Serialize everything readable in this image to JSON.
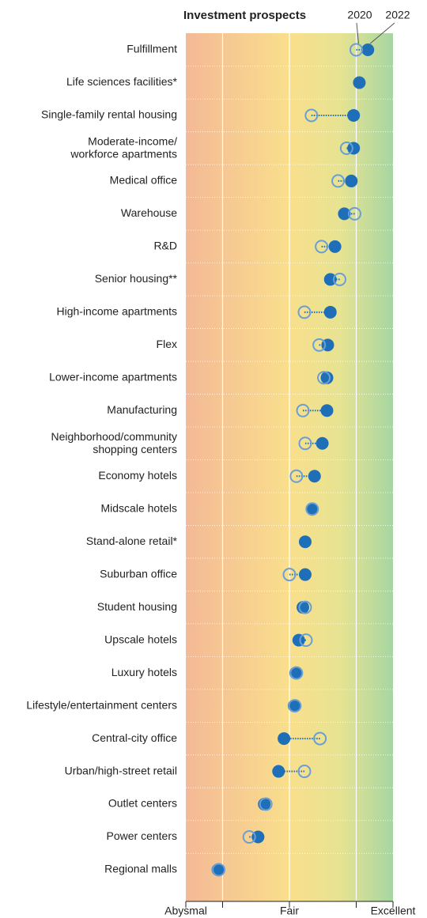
{
  "chart_data": {
    "type": "dumbbell",
    "title": "Investment prospects",
    "categories": [
      "Fulfillment",
      "Life sciences facilities*",
      "Single-family rental housing",
      "Moderate-income/\nworkforce apartments",
      "Medical office",
      "Warehouse",
      "R&D",
      "Senior housing**",
      "High-income apartments",
      "Flex",
      "Lower-income apartments",
      "Manufacturing",
      "Neighborhood/community\nshopping centers",
      "Economy hotels",
      "Midscale hotels",
      "Stand-alone retail*",
      "Suburban office",
      "Student housing",
      "Upscale hotels",
      "Luxury hotels",
      "Lifestyle/entertainment centers",
      "Central-city office",
      "Urban/high-street retail",
      "Outlet centers",
      "Power centers",
      "Regional malls"
    ],
    "series": [
      {
        "name": "2020",
        "color": "#6a9fd4",
        "values": [
          7.58,
          null,
          5.85,
          7.21,
          6.88,
          7.52,
          6.24,
          6.94,
          5.58,
          6.15,
          6.33,
          5.52,
          5.61,
          5.27,
          5.88,
          null,
          5.0,
          5.61,
          5.64,
          5.27,
          5.21,
          6.18,
          5.58,
          4.09,
          3.45,
          2.27
        ]
      },
      {
        "name": "2022",
        "color": "#1f6fb8",
        "values": [
          8.03,
          7.7,
          7.48,
          7.48,
          7.39,
          7.12,
          6.76,
          6.58,
          6.58,
          6.48,
          6.45,
          6.45,
          6.27,
          5.97,
          5.88,
          5.61,
          5.61,
          5.52,
          5.36,
          5.24,
          5.18,
          4.79,
          4.58,
          4.03,
          3.79,
          2.24
        ]
      }
    ],
    "xlim": [
      1,
      9
    ],
    "xticks": [
      {
        "value": 1,
        "label": "Abysmal"
      },
      {
        "value": 5,
        "label": "Fair"
      },
      {
        "value": 9,
        "label": "Excellent"
      }
    ],
    "xminorticks": [
      2.42,
      7.58
    ],
    "grid": true
  }
}
